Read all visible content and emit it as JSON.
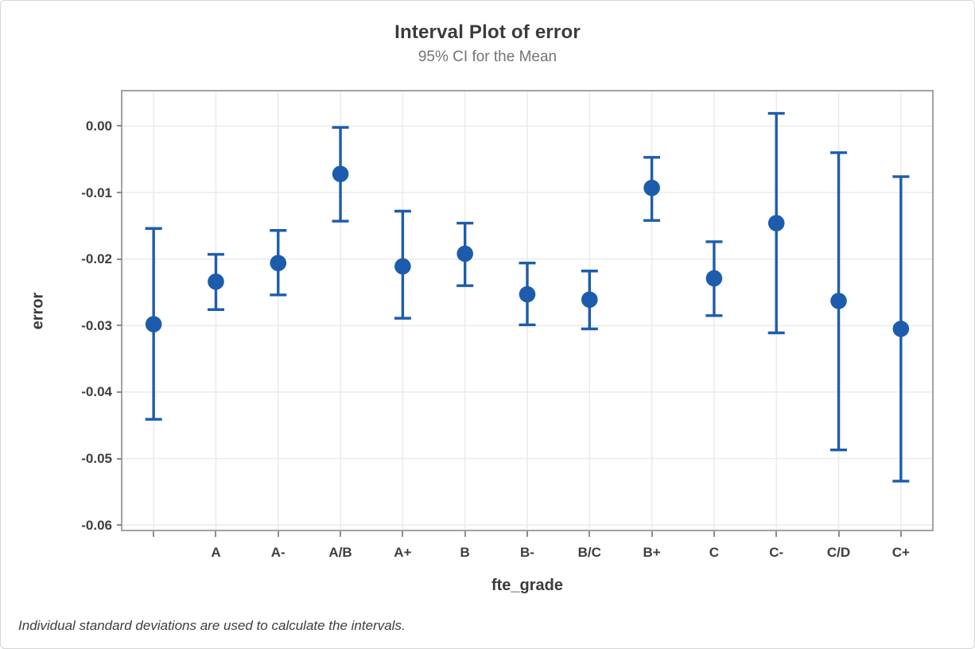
{
  "figure": {
    "title": "Interval Plot of error",
    "subtitle": "95% CI for the Mean",
    "footnote": "Individual standard deviations are used to calculate the intervals."
  },
  "chart_data": {
    "type": "interval",
    "title": "Interval Plot of error",
    "subtitle": "95% CI for the Mean",
    "confidence_level": "95%",
    "xlabel": "fte_grade",
    "ylabel": "error",
    "categories": [
      "",
      "A",
      "A-",
      "A/B",
      "A+",
      "B",
      "B-",
      "B/C",
      "B+",
      "C",
      "C-",
      "C/D",
      "C+"
    ],
    "means": [
      -0.0298,
      -0.0234,
      -0.0206,
      -0.0072,
      -0.0211,
      -0.0192,
      -0.0253,
      -0.0261,
      -0.0093,
      -0.0229,
      -0.0146,
      -0.0263,
      -0.0305
    ],
    "ci_upper": [
      -0.0154,
      -0.0193,
      -0.0157,
      -0.0002,
      -0.0128,
      -0.0146,
      -0.0206,
      -0.0218,
      -0.0047,
      -0.0174,
      0.0019,
      -0.004,
      -0.0076
    ],
    "ci_lower": [
      -0.0441,
      -0.0276,
      -0.0254,
      -0.0143,
      -0.0289,
      -0.024,
      -0.0299,
      -0.0305,
      -0.0142,
      -0.0285,
      -0.0311,
      -0.0487,
      -0.0534
    ],
    "y_ticks": [
      {
        "label": "0.00",
        "value": 0
      },
      {
        "label": "-0.01",
        "value": -0.01
      },
      {
        "label": "-0.02",
        "value": -0.02
      },
      {
        "label": "-0.03",
        "value": -0.03
      },
      {
        "label": "-0.04",
        "value": -0.04
      },
      {
        "label": "-0.05",
        "value": -0.05
      },
      {
        "label": "-0.06",
        "value": -0.06
      }
    ],
    "ylim": [
      -0.0607,
      0.0052
    ],
    "grid": true,
    "legend": "none",
    "colors": {
      "interval_blue": "#1D5CAC",
      "gridline": "#EBEBEB",
      "plot_border": "#A2A2A2",
      "tick_mark": "#8C8C8C",
      "title_text": "#3B3B3B",
      "subtitle_text": "#747474",
      "tick_label_text": "#3E3E3E"
    }
  }
}
